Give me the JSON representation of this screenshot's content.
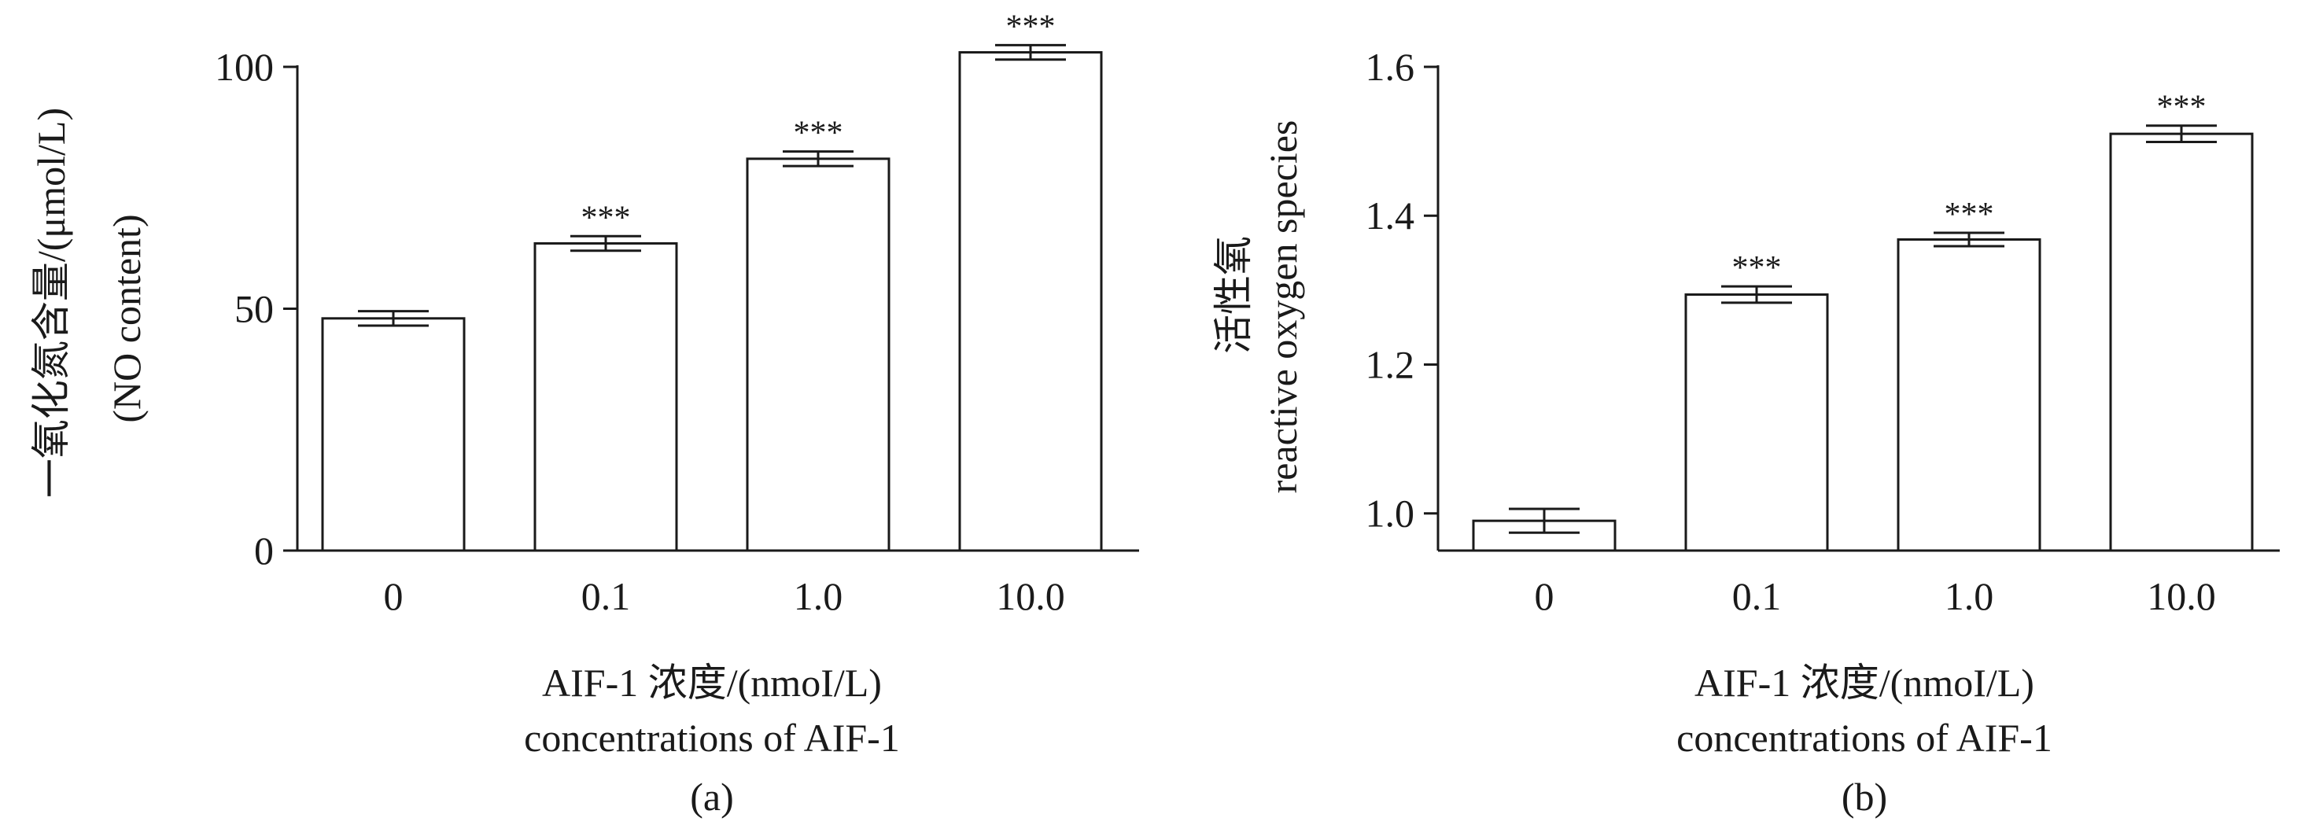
{
  "chart_data": [
    {
      "type": "bar",
      "panel_label": "(a)",
      "categories": [
        "0",
        "0.1",
        "1.0",
        "10.0"
      ],
      "values": [
        48,
        63.5,
        81,
        103
      ],
      "errors": [
        1.5,
        1.5,
        1.5,
        1.5
      ],
      "significance": [
        "",
        "***",
        "***",
        "***"
      ],
      "ylabel_lines": [
        "一氧化氮含量/(μmol/L)",
        "(NO content)"
      ],
      "xlabel_lines": [
        "AIF-1 浓度/(nmoI/L)",
        "concentrations of AIF-1"
      ],
      "ylim": [
        0,
        100
      ],
      "yticks": [
        0,
        50,
        100
      ],
      "grid": false,
      "legend": false
    },
    {
      "type": "bar",
      "panel_label": "(b)",
      "categories": [
        "0",
        "0.1",
        "1.0",
        "10.0"
      ],
      "values": [
        0.99,
        1.294,
        1.368,
        1.51
      ],
      "errors": [
        0.016,
        0.011,
        0.009,
        0.011
      ],
      "significance": [
        "",
        "***",
        "***",
        "***"
      ],
      "ylabel_lines": [
        "活性氧",
        "reactive oxygen species"
      ],
      "xlabel_lines": [
        "AIF-1 浓度/(nmoI/L)",
        "concentrations of AIF-1"
      ],
      "ylim": [
        0.95,
        1.6
      ],
      "yticks": [
        1.0,
        1.2,
        1.4,
        1.6
      ],
      "tick_labels": [
        "1.0",
        "1.2",
        "1.4",
        "1.6"
      ],
      "grid": false,
      "legend": false
    }
  ]
}
